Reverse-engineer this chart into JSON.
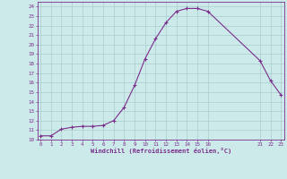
{
  "x": [
    0,
    1,
    2,
    3,
    4,
    5,
    6,
    7,
    8,
    9,
    10,
    11,
    12,
    13,
    14,
    15,
    16,
    21,
    22,
    23
  ],
  "y": [
    10.4,
    10.4,
    11.1,
    11.3,
    11.4,
    11.4,
    11.5,
    12.0,
    13.4,
    15.7,
    18.5,
    20.6,
    22.3,
    23.5,
    23.8,
    23.8,
    23.5,
    18.3,
    16.2,
    14.7
  ],
  "line_color": "#7b2d8b",
  "bg_color": "#cceaea",
  "grid_color": "#aacccc",
  "xlabel": "Windchill (Refroidissement éolien,°C)",
  "xlabel_color": "#7b2d8b",
  "tick_color": "#7b2d8b",
  "ylim": [
    10,
    24.5
  ],
  "xlim": [
    -0.3,
    23.3
  ],
  "yticks": [
    10,
    11,
    12,
    13,
    14,
    15,
    16,
    17,
    18,
    19,
    20,
    21,
    22,
    23,
    24
  ],
  "xticks": [
    0,
    1,
    2,
    3,
    4,
    5,
    6,
    7,
    8,
    9,
    10,
    11,
    12,
    13,
    14,
    15,
    16,
    21,
    22,
    23
  ],
  "xtick_labels": [
    "0",
    "1",
    "2",
    "3",
    "4",
    "5",
    "6",
    "7",
    "8",
    "9",
    "10",
    "11",
    "12",
    "13",
    "14",
    "15",
    "16",
    "21",
    "22",
    "23"
  ]
}
